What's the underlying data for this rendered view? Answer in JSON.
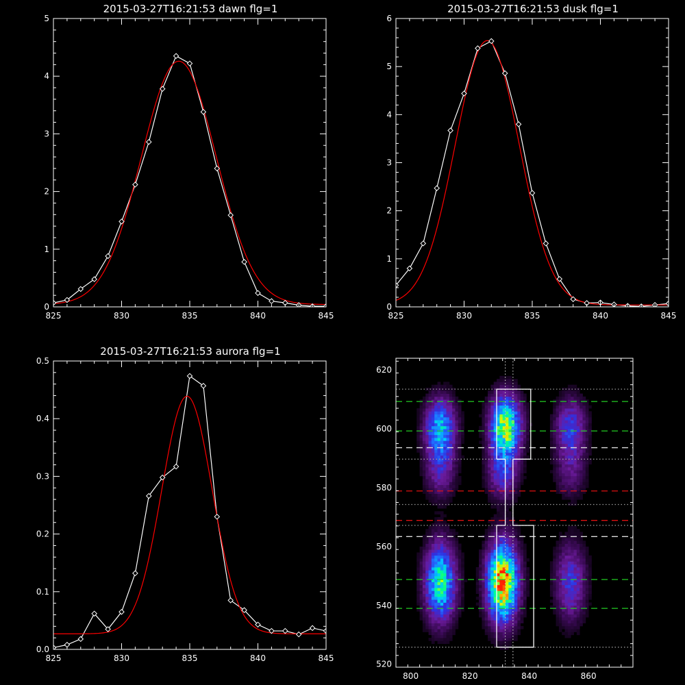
{
  "chart_data": [
    {
      "id": "dawn",
      "type": "line",
      "title": "2015-03-27T16:21:53 dawn flg=1",
      "xlim": [
        825,
        845
      ],
      "ylim": [
        0,
        5
      ],
      "xticks": [
        825,
        830,
        835,
        840,
        845
      ],
      "yticks": [
        0,
        1,
        2,
        3,
        4,
        5
      ],
      "data_color": "#ffffff",
      "fit_color": "#ff0000",
      "series": [
        {
          "x": [
            825,
            826,
            827,
            828,
            829,
            830,
            831,
            832,
            833,
            834,
            835,
            836,
            837,
            838,
            839,
            840,
            841,
            842,
            843,
            844,
            845
          ],
          "y": [
            0.07,
            0.12,
            0.31,
            0.48,
            0.88,
            1.48,
            2.12,
            2.86,
            3.78,
            4.35,
            4.22,
            3.38,
            2.4,
            1.59,
            0.78,
            0.24,
            0.1,
            0.07,
            0.03,
            0.01,
            0.01
          ]
        }
      ],
      "fit": {
        "amp": 4.22,
        "center": 834.2,
        "sigma": 2.75,
        "offset": 0.04
      }
    },
    {
      "id": "dusk",
      "type": "line",
      "title": "2015-03-27T16:21:53 dusk flg=1",
      "xlim": [
        825,
        845
      ],
      "ylim": [
        0,
        6
      ],
      "xticks": [
        825,
        830,
        835,
        840,
        845
      ],
      "yticks": [
        0,
        1,
        2,
        3,
        4,
        5,
        6
      ],
      "data_color": "#ffffff",
      "fit_color": "#ff0000",
      "series": [
        {
          "x": [
            825,
            826,
            827,
            828,
            829,
            830,
            831,
            832,
            833,
            834,
            835,
            836,
            837,
            838,
            839,
            840,
            841,
            842,
            843,
            844,
            845
          ],
          "y": [
            0.45,
            0.8,
            1.32,
            2.47,
            3.67,
            4.44,
            5.38,
            5.53,
            4.86,
            3.8,
            2.37,
            1.32,
            0.58,
            0.16,
            0.08,
            0.09,
            0.05,
            0.02,
            0.01,
            0.04,
            0.07
          ]
        }
      ],
      "fit": {
        "amp": 5.5,
        "center": 831.7,
        "sigma": 2.35,
        "offset": 0.04
      }
    },
    {
      "id": "aurora",
      "type": "line",
      "title": "2015-03-27T16:21:53 aurora flg=1",
      "xlim": [
        825,
        845
      ],
      "ylim": [
        0,
        0.5
      ],
      "xticks": [
        825,
        830,
        835,
        840,
        845
      ],
      "yticks": [
        0.0,
        0.1,
        0.2,
        0.3,
        0.4,
        0.5
      ],
      "ytick_labels": [
        "0.0",
        "0.1",
        "0.2",
        "0.3",
        "0.4",
        "0.5"
      ],
      "data_color": "#ffffff",
      "fit_color": "#ff0000",
      "series": [
        {
          "x": [
            825,
            826,
            827,
            828,
            829,
            830,
            831,
            832,
            833,
            834,
            835,
            836,
            837,
            838,
            839,
            840,
            841,
            842,
            843,
            844,
            845
          ],
          "y": [
            0.003,
            0.008,
            0.018,
            0.062,
            0.035,
            0.065,
            0.132,
            0.266,
            0.298,
            0.317,
            0.474,
            0.457,
            0.23,
            0.085,
            0.068,
            0.043,
            0.032,
            0.032,
            0.026,
            0.037,
            0.032
          ]
        }
      ],
      "fit": {
        "amp": 0.412,
        "center": 834.8,
        "sigma": 1.85,
        "offset": 0.027
      }
    },
    {
      "id": "image",
      "type": "heatmap",
      "title": "",
      "xlim": [
        795,
        875
      ],
      "ylim": [
        519,
        624
      ],
      "xticks": [
        800,
        820,
        840,
        860
      ],
      "yticks": [
        520,
        540,
        560,
        580,
        600,
        620
      ],
      "colormap": [
        "#000000",
        "#3a0a55",
        "#6a1a9a",
        "#3030e0",
        "#2070ff",
        "#00c8ff",
        "#00ff90",
        "#d0ff00",
        "#ffc000",
        "#ff2000"
      ],
      "blobs": [
        {
          "cx": 810,
          "cy": 600,
          "sx": 3.5,
          "sy": 7,
          "amp": 0.55
        },
        {
          "cx": 810,
          "cy": 585,
          "sx": 3.5,
          "sy": 6,
          "amp": 0.22
        },
        {
          "cx": 810,
          "cy": 548,
          "sx": 3.5,
          "sy": 9,
          "amp": 0.65
        },
        {
          "cx": 832,
          "cy": 601,
          "sx": 3.5,
          "sy": 7,
          "amp": 0.78
        },
        {
          "cx": 831,
          "cy": 585,
          "sx": 3.5,
          "sy": 6,
          "amp": 0.3
        },
        {
          "cx": 831,
          "cy": 548,
          "sx": 3.5,
          "sy": 9,
          "amp": 0.98
        },
        {
          "cx": 854,
          "cy": 600,
          "sx": 3.5,
          "sy": 7,
          "amp": 0.35
        },
        {
          "cx": 854,
          "cy": 585,
          "sx": 3.5,
          "sy": 6,
          "amp": 0.16
        },
        {
          "cx": 854,
          "cy": 548,
          "sx": 3.5,
          "sy": 9,
          "amp": 0.32
        }
      ],
      "h_lines": [
        {
          "y": 613.5,
          "color": "#9a9a9a",
          "dash": "dotted"
        },
        {
          "y": 609.3,
          "color": "#22cc22",
          "dash": "dashed"
        },
        {
          "y": 599.3,
          "color": "#22cc22",
          "dash": "dashed"
        },
        {
          "y": 593.6,
          "color": "#dddddd",
          "dash": "dashed"
        },
        {
          "y": 589.7,
          "color": "#9a9a9a",
          "dash": "dotted"
        },
        {
          "y": 578.9,
          "color": "#dd1111",
          "dash": "dashed"
        },
        {
          "y": 574.3,
          "color": "#9a9a9a",
          "dash": "dotted"
        },
        {
          "y": 568.9,
          "color": "#dd1111",
          "dash": "dashed"
        },
        {
          "y": 567.2,
          "color": "#9a9a9a",
          "dash": "dotted"
        },
        {
          "y": 563.4,
          "color": "#dddddd",
          "dash": "dashed"
        },
        {
          "y": 548.8,
          "color": "#22cc22",
          "dash": "dashed"
        },
        {
          "y": 539.0,
          "color": "#22cc22",
          "dash": "dashed"
        },
        {
          "y": 525.8,
          "color": "#9a9a9a",
          "dash": "dotted"
        }
      ],
      "v_lines": [
        {
          "x": 831.9,
          "color": "#bbbbbb",
          "dash": "dotted"
        },
        {
          "x": 834.5,
          "color": "#bbbbbb",
          "dash": "dotted"
        }
      ],
      "region_outline": [
        [
          829,
          589.7
        ],
        [
          829,
          613.5
        ],
        [
          840.5,
          613.5
        ],
        [
          840.5,
          589.7
        ],
        [
          834.5,
          589.7
        ],
        [
          834.5,
          567.2
        ],
        [
          841.5,
          567.2
        ],
        [
          841.5,
          525.8
        ],
        [
          829,
          525.8
        ],
        [
          829,
          567.2
        ],
        [
          831.9,
          567.2
        ],
        [
          831.9,
          589.7
        ],
        [
          829,
          589.7
        ]
      ]
    }
  ]
}
